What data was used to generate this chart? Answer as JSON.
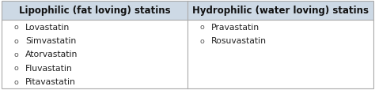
{
  "col1_header": "Lipophilic (fat loving) statins",
  "col2_header": "Hydrophilic (water loving) statins",
  "col1_items": [
    "Lovastatin",
    "Simvastatin",
    "Atorvastatin",
    "Fluvastatin",
    "Pitavastatin"
  ],
  "col2_items": [
    "Pravastatin",
    "Rosuvastatin"
  ],
  "header_bg": "#cdd9e5",
  "body_bg": "#ffffff",
  "border_color": "#aaaaaa",
  "header_fontsize": 8.5,
  "body_fontsize": 7.8,
  "header_fontweight": "bold",
  "fig_width": 4.74,
  "fig_height": 1.15,
  "dpi": 100
}
